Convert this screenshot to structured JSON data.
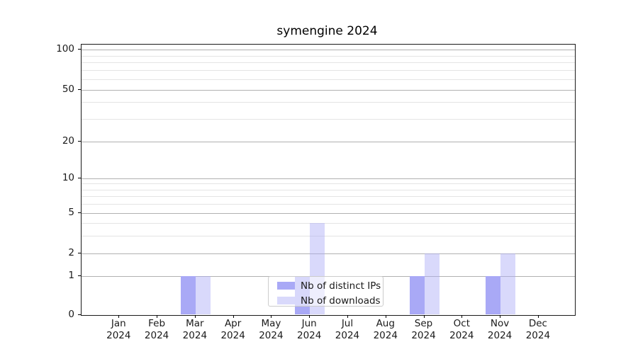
{
  "chart_data": {
    "type": "bar",
    "title": "symengine 2024",
    "categories": [
      "Jan",
      "Feb",
      "Mar",
      "Apr",
      "May",
      "Jun",
      "Jul",
      "Aug",
      "Sep",
      "Oct",
      "Nov",
      "Dec"
    ],
    "year_label": "2024",
    "series": [
      {
        "name": "Nb of distinct IPs",
        "color": "#a9a9f6",
        "opacity": 1.0,
        "values": [
          0,
          0,
          1,
          0,
          0,
          1,
          0,
          0,
          1,
          0,
          1,
          0
        ]
      },
      {
        "name": "Nb of downloads",
        "color": "#aaaaf6",
        "opacity": 0.45,
        "values": [
          0,
          0,
          1,
          0,
          0,
          4,
          0,
          0,
          2,
          0,
          2,
          0
        ]
      }
    ],
    "yscale": "symlog",
    "y_major_ticks": [
      0,
      1,
      2,
      5,
      10,
      20,
      50,
      100
    ],
    "y_minor_gridlines": [
      3,
      4,
      6,
      7,
      8,
      9,
      30,
      40,
      60,
      70,
      80,
      90
    ],
    "ylim": [
      0,
      110
    ],
    "grid": "horizontal-only",
    "legend_position": "lower-center",
    "style": {
      "major_grid_color": "#b1b1b1",
      "minor_grid_color": "#e4e4e4",
      "spine_color": "#1a1a1a",
      "background": "#ffffff"
    }
  }
}
